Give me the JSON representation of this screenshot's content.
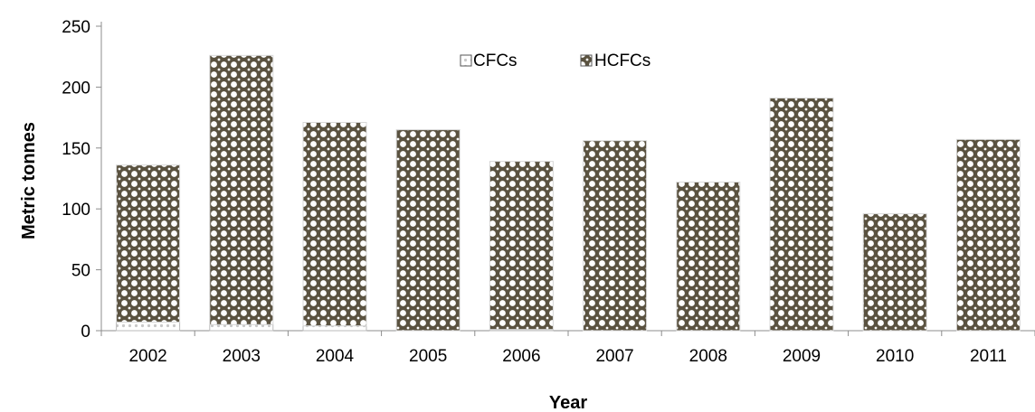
{
  "chart_data": {
    "type": "bar",
    "stacked": true,
    "categories": [
      "2002",
      "2003",
      "2004",
      "2005",
      "2006",
      "2007",
      "2008",
      "2009",
      "2010",
      "2011"
    ],
    "series": [
      {
        "name": "CFCs",
        "values": [
          7,
          5,
          4,
          0,
          1,
          0,
          0,
          0,
          0,
          0
        ]
      },
      {
        "name": "HCFCs",
        "values": [
          129,
          221,
          167,
          165,
          138,
          156,
          122,
          191,
          96,
          157
        ]
      }
    ],
    "title": "",
    "xlabel": "Year",
    "ylabel": "Metric  tonnes",
    "ylim": [
      0,
      250
    ],
    "yticks": [
      0,
      50,
      100,
      150,
      200,
      250
    ],
    "grid": false,
    "legend_position": "top-center",
    "colors": {
      "cfc_dot": "#c8c8c8",
      "hcfc_fill": "#5a5240",
      "hcfc_dot": "#ffffff",
      "axis": "#8c8c8c"
    }
  }
}
